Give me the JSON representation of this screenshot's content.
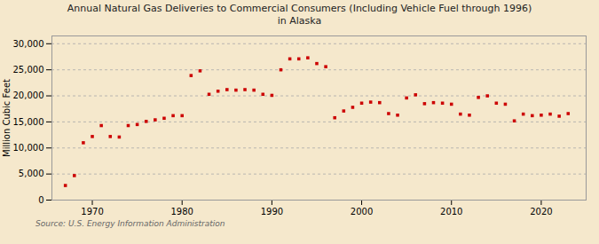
{
  "chart_data": {
    "type": "scatter",
    "title": "Annual Natural Gas Deliveries to Commercial Consumers (Including Vehicle Fuel through 1996)\nin Alaska",
    "ylabel": "Million Cubic Feet",
    "source": "Source: U.S. Energy Information Administration",
    "x": [
      1967,
      1968,
      1969,
      1970,
      1971,
      1972,
      1973,
      1974,
      1975,
      1976,
      1977,
      1978,
      1979,
      1980,
      1981,
      1982,
      1983,
      1984,
      1985,
      1986,
      1987,
      1988,
      1989,
      1990,
      1991,
      1992,
      1993,
      1994,
      1995,
      1996,
      1997,
      1998,
      1999,
      2000,
      2001,
      2002,
      2003,
      2004,
      2005,
      2006,
      2007,
      2008,
      2009,
      2010,
      2011,
      2012,
      2013,
      2014,
      2015,
      2016,
      2017,
      2018,
      2019,
      2020,
      2021,
      2022,
      2023
    ],
    "values": [
      2800,
      4700,
      11000,
      12200,
      14300,
      12200,
      12100,
      14300,
      14500,
      15100,
      15400,
      15700,
      16200,
      16200,
      23900,
      24800,
      20300,
      20900,
      21200,
      21100,
      21200,
      21100,
      20300,
      20100,
      25000,
      27100,
      27100,
      27300,
      26200,
      25600,
      15800,
      17100,
      17800,
      18600,
      18800,
      18700,
      16600,
      16300,
      19600,
      20200,
      18500,
      18700,
      18600,
      18400,
      16500,
      16300,
      19700,
      20000,
      18600,
      18400,
      15200,
      16500,
      16200,
      16300,
      16500,
      16100,
      16600
    ],
    "color": "#cc0000",
    "marker": "square",
    "xlim": [
      1965.5,
      2025
    ],
    "xticks": [
      1970,
      1980,
      1990,
      2000,
      2010,
      2020
    ],
    "ylim": [
      0,
      31500
    ],
    "yticks": [
      0,
      {
        "value": 5000,
        "label": "5,000"
      },
      {
        "value": 10000,
        "label": "10,000"
      },
      {
        "value": 15000,
        "label": "15,000"
      },
      {
        "value": 20000,
        "label": "20,000"
      },
      {
        "value": 25000,
        "label": "25,000"
      },
      {
        "value": 30000,
        "label": "30,000"
      }
    ],
    "grid": true
  }
}
